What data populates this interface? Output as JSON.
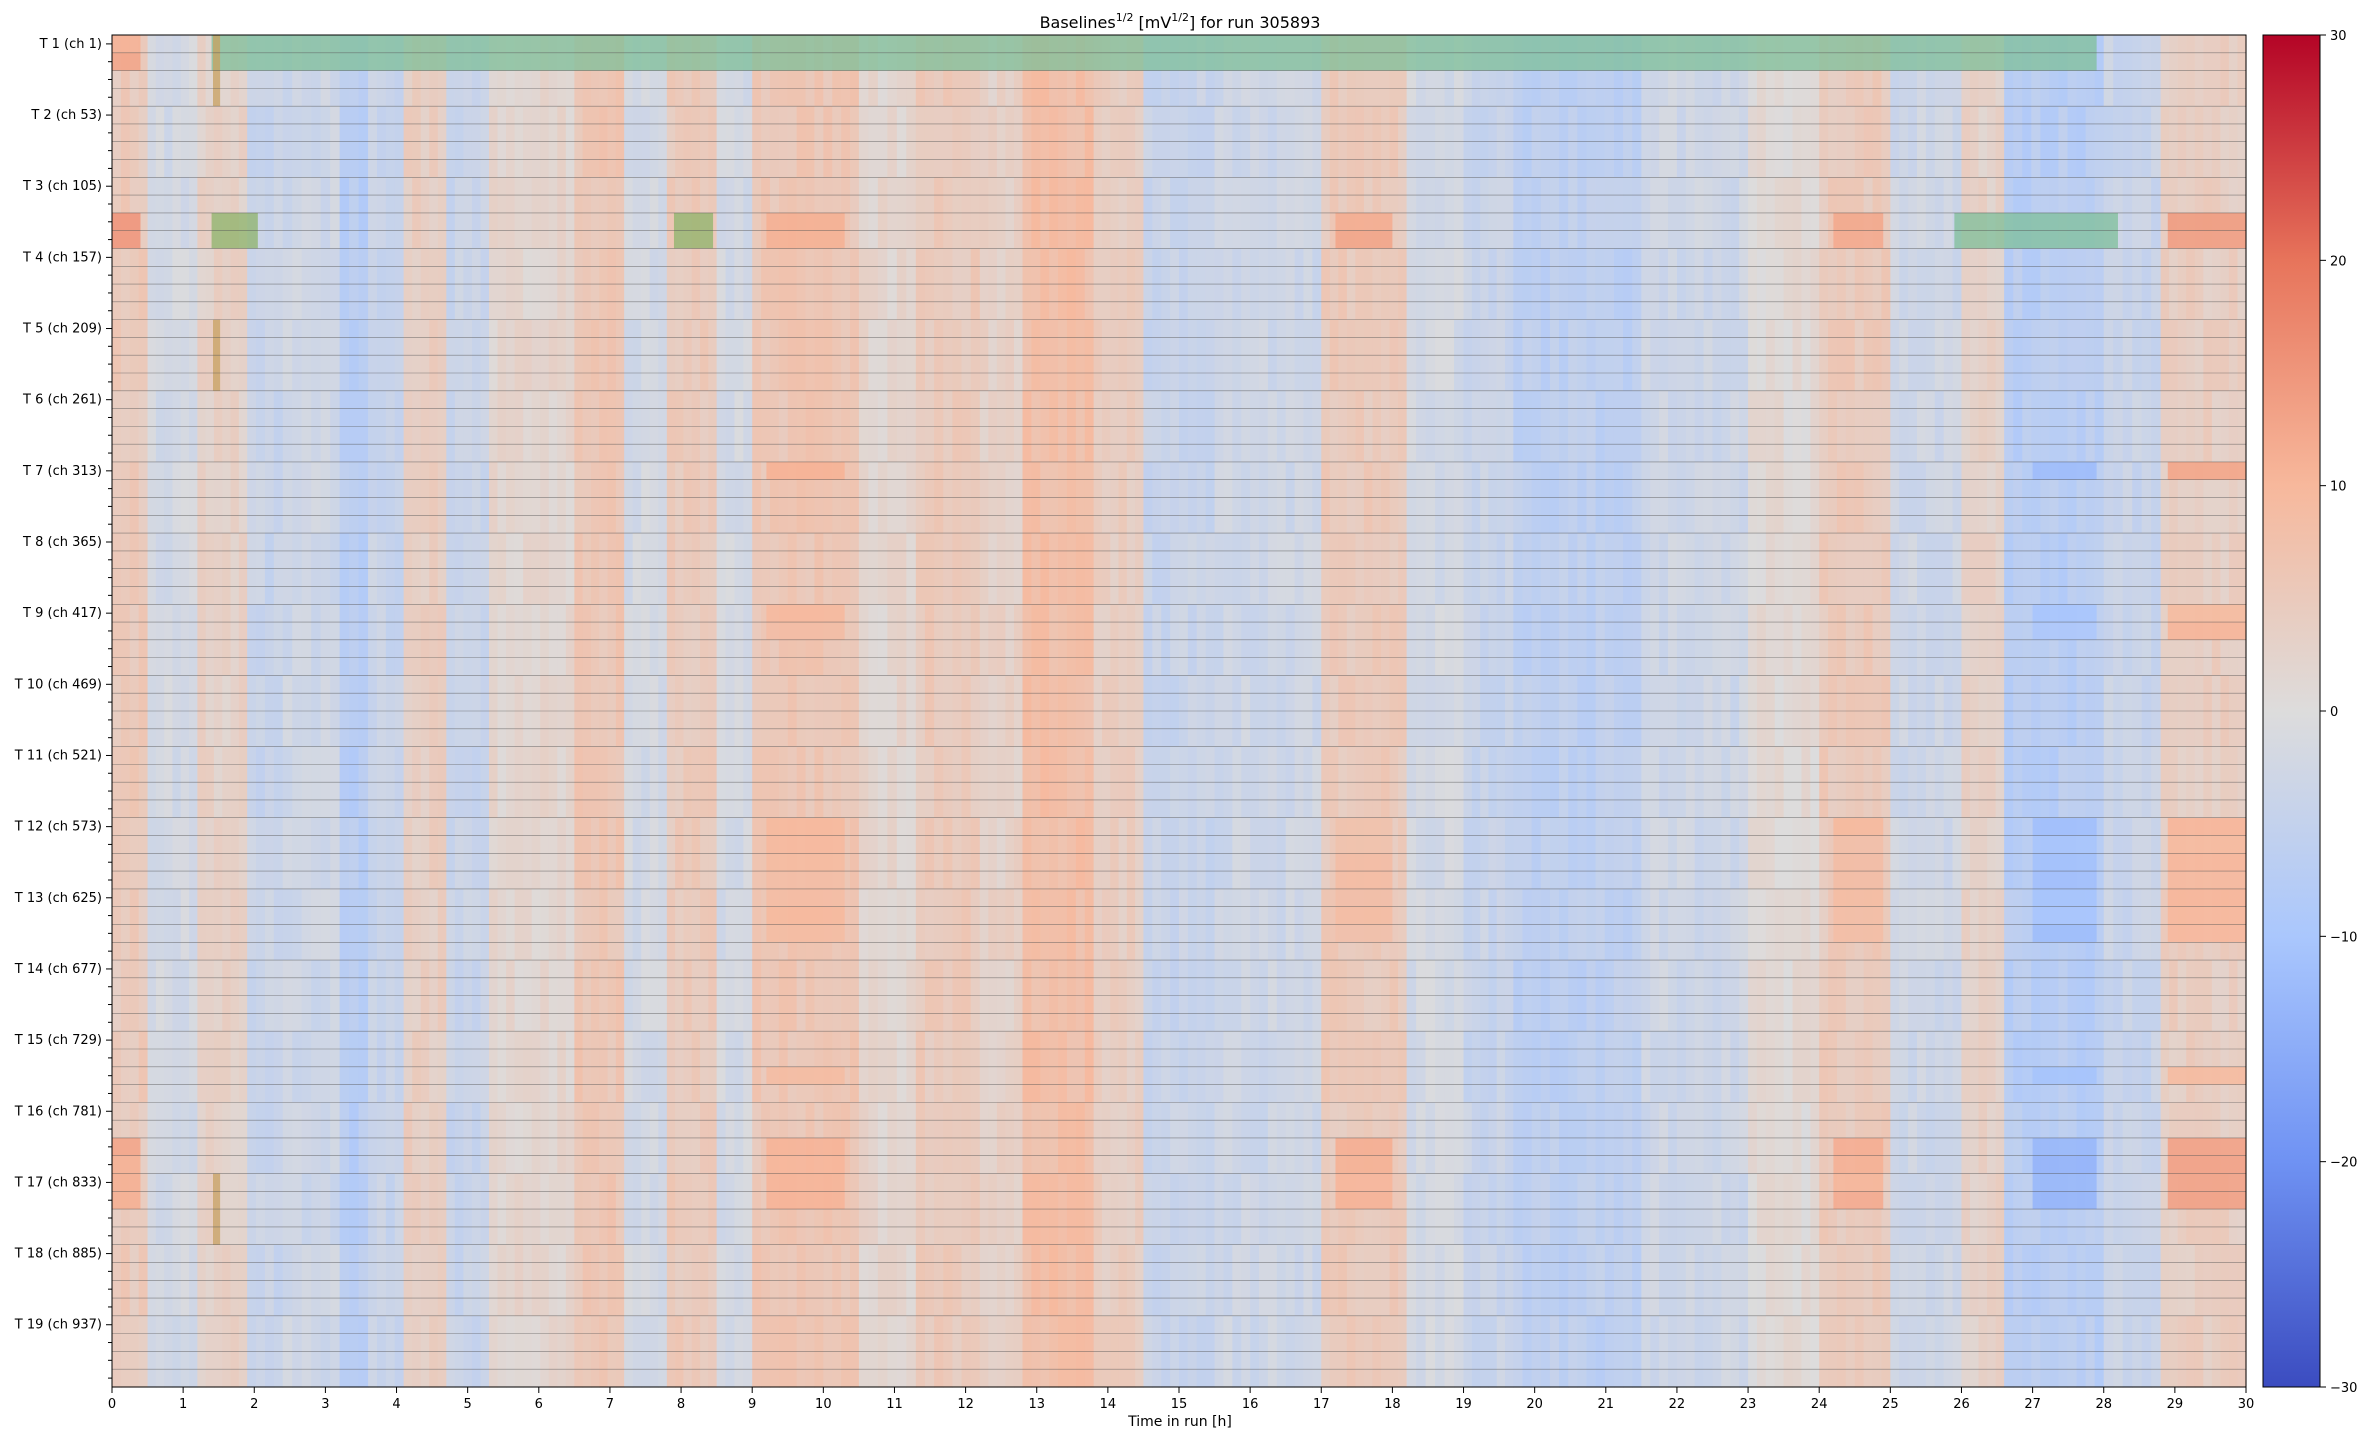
{
  "chart_data": {
    "type": "heatmap",
    "title_main": "Baselines",
    "title_exponent": "1/2",
    "title_unit_prefix": " [mV",
    "title_unit_exponent": "1/2",
    "title_suffix": "] for run 305893",
    "xlabel": "Time in run [h]",
    "ylabel": "",
    "xlim": [
      0,
      30
    ],
    "x_ticks": [
      0,
      1,
      2,
      3,
      4,
      5,
      6,
      7,
      8,
      9,
      10,
      11,
      12,
      13,
      14,
      15,
      16,
      17,
      18,
      19,
      20,
      21,
      22,
      23,
      24,
      25,
      26,
      27,
      28,
      29,
      30
    ],
    "y_tick_labels": [
      "T 1 (ch 1)",
      "T 2 (ch 53)",
      "T 3 (ch 105)",
      "T 4 (ch 157)",
      "T 5 (ch 209)",
      "T 6 (ch 261)",
      "T 7 (ch 313)",
      "T 8 (ch 365)",
      "T 9 (ch 417)",
      "T 10 (ch 469)",
      "T 11 (ch 521)",
      "T 12 (ch 573)",
      "T 13 (ch 625)",
      "T 14 (ch 677)",
      "T 15 (ch 729)",
      "T 16 (ch 781)",
      "T 17 (ch 833)",
      "T 18 (ch 885)",
      "T 19 (ch 937)"
    ],
    "row_count": 76,
    "colorbar": {
      "colormap": "coolwarm",
      "vmin": -30,
      "vmax": 30,
      "ticks": [
        30,
        20,
        10,
        0,
        -10,
        -20,
        -30
      ],
      "colors": [
        "#3b4cc0",
        "#6f92f3",
        "#aac7fd",
        "#dddcdc",
        "#f7b89c",
        "#e7745b",
        "#b40426"
      ]
    },
    "time_column_pattern": [
      {
        "x0": 0.0,
        "x1": 0.5,
        "v": 5
      },
      {
        "x0": 0.5,
        "x1": 1.2,
        "v": -2
      },
      {
        "x0": 1.2,
        "x1": 1.9,
        "v": 3
      },
      {
        "x0": 1.9,
        "x1": 2.4,
        "v": -4
      },
      {
        "x0": 2.4,
        "x1": 3.2,
        "v": -3
      },
      {
        "x0": 3.2,
        "x1": 3.6,
        "v": -7
      },
      {
        "x0": 3.6,
        "x1": 4.1,
        "v": -4
      },
      {
        "x0": 4.1,
        "x1": 4.7,
        "v": 4
      },
      {
        "x0": 4.7,
        "x1": 5.3,
        "v": -4
      },
      {
        "x0": 5.3,
        "x1": 6.5,
        "v": 2
      },
      {
        "x0": 6.5,
        "x1": 7.2,
        "v": 6
      },
      {
        "x0": 7.2,
        "x1": 7.8,
        "v": -2
      },
      {
        "x0": 7.8,
        "x1": 8.5,
        "v": 5
      },
      {
        "x0": 8.5,
        "x1": 9.0,
        "v": -2
      },
      {
        "x0": 9.0,
        "x1": 10.5,
        "v": 6
      },
      {
        "x0": 10.5,
        "x1": 11.3,
        "v": 2
      },
      {
        "x0": 11.3,
        "x1": 12.2,
        "v": 5
      },
      {
        "x0": 12.2,
        "x1": 12.8,
        "v": 3
      },
      {
        "x0": 12.8,
        "x1": 13.8,
        "v": 8
      },
      {
        "x0": 13.8,
        "x1": 14.5,
        "v": 4
      },
      {
        "x0": 14.5,
        "x1": 15.5,
        "v": -4
      },
      {
        "x0": 15.5,
        "x1": 17.0,
        "v": -3
      },
      {
        "x0": 17.0,
        "x1": 18.2,
        "v": 5
      },
      {
        "x0": 18.2,
        "x1": 19.0,
        "v": -2
      },
      {
        "x0": 19.0,
        "x1": 19.7,
        "v": -4
      },
      {
        "x0": 19.7,
        "x1": 21.5,
        "v": -6
      },
      {
        "x0": 21.5,
        "x1": 23.0,
        "v": -3
      },
      {
        "x0": 23.0,
        "x1": 24.0,
        "v": 1
      },
      {
        "x0": 24.0,
        "x1": 25.0,
        "v": 5
      },
      {
        "x0": 25.0,
        "x1": 26.0,
        "v": -3
      },
      {
        "x0": 26.0,
        "x1": 26.6,
        "v": 3
      },
      {
        "x0": 26.6,
        "x1": 28.0,
        "v": -7
      },
      {
        "x0": 28.0,
        "x1": 28.8,
        "v": -4
      },
      {
        "x0": 28.8,
        "x1": 30.0,
        "v": 4
      }
    ],
    "hot_row_bands": [
      {
        "r0": 0,
        "r1": 2,
        "x0": 0.0,
        "x1": 0.4,
        "v": 12
      },
      {
        "r0": 10,
        "r1": 12,
        "x0": 0.0,
        "x1": 0.4,
        "v": 14
      },
      {
        "r0": 10,
        "r1": 12,
        "x0": 9.2,
        "x1": 10.3,
        "v": 12
      },
      {
        "r0": 10,
        "r1": 12,
        "x0": 17.2,
        "x1": 18.0,
        "v": 12
      },
      {
        "r0": 10,
        "r1": 12,
        "x0": 24.2,
        "x1": 24.9,
        "v": 12
      },
      {
        "r0": 10,
        "r1": 12,
        "x0": 28.9,
        "x1": 30.0,
        "v": 14
      },
      {
        "r0": 24,
        "r1": 25,
        "x0": 9.2,
        "x1": 10.3,
        "v": 10
      },
      {
        "r0": 24,
        "r1": 25,
        "x0": 28.9,
        "x1": 30.0,
        "v": 12
      },
      {
        "r0": 24,
        "r1": 25,
        "x0": 27.0,
        "x1": 27.9,
        "v": -12
      },
      {
        "r0": 32,
        "r1": 34,
        "x0": 9.2,
        "x1": 10.3,
        "v": 9
      },
      {
        "r0": 32,
        "r1": 34,
        "x0": 28.9,
        "x1": 30.0,
        "v": 10
      },
      {
        "r0": 32,
        "r1": 34,
        "x0": 27.0,
        "x1": 27.9,
        "v": -10
      },
      {
        "r0": 44,
        "r1": 51,
        "x0": 9.2,
        "x1": 10.3,
        "v": 9
      },
      {
        "r0": 44,
        "r1": 51,
        "x0": 17.2,
        "x1": 18.0,
        "v": 8
      },
      {
        "r0": 44,
        "r1": 51,
        "x0": 24.2,
        "x1": 24.9,
        "v": 9
      },
      {
        "r0": 44,
        "r1": 51,
        "x0": 28.9,
        "x1": 30.0,
        "v": 10
      },
      {
        "r0": 44,
        "r1": 51,
        "x0": 27.0,
        "x1": 27.9,
        "v": -11
      },
      {
        "r0": 58,
        "r1": 59,
        "x0": 9.2,
        "x1": 10.3,
        "v": 8
      },
      {
        "r0": 58,
        "r1": 59,
        "x0": 28.9,
        "x1": 30.0,
        "v": 10
      },
      {
        "r0": 58,
        "r1": 59,
        "x0": 27.0,
        "x1": 27.9,
        "v": -10
      },
      {
        "r0": 62,
        "r1": 66,
        "x0": 0.0,
        "x1": 0.4,
        "v": 12
      },
      {
        "r0": 62,
        "r1": 66,
        "x0": 9.2,
        "x1": 10.3,
        "v": 11
      },
      {
        "r0": 62,
        "r1": 66,
        "x0": 17.2,
        "x1": 18.0,
        "v": 11
      },
      {
        "r0": 62,
        "r1": 66,
        "x0": 24.2,
        "x1": 24.9,
        "v": 11
      },
      {
        "r0": 62,
        "r1": 66,
        "x0": 28.9,
        "x1": 30.0,
        "v": 13
      },
      {
        "r0": 62,
        "r1": 66,
        "x0": 27.0,
        "x1": 27.9,
        "v": -13
      }
    ],
    "dead_channel_overlays": [
      {
        "r0": 0,
        "r1": 1,
        "x0": 1.4,
        "x1": 27.9,
        "color": "#7fbf9a"
      },
      {
        "r0": 1,
        "r1": 2,
        "x0": 1.4,
        "x1": 27.9,
        "color": "#7fbf9a"
      },
      {
        "r0": 10,
        "r1": 12,
        "x0": 1.4,
        "x1": 2.05,
        "color": "#8db36a"
      },
      {
        "r0": 10,
        "r1": 12,
        "x0": 7.9,
        "x1": 8.45,
        "color": "#8db36a"
      },
      {
        "r0": 10,
        "r1": 12,
        "x0": 25.9,
        "x1": 28.2,
        "color": "#7fbf9a"
      },
      {
        "r0": 0,
        "r1": 4,
        "x0": 1.42,
        "x1": 1.52,
        "color": "#c8a060"
      },
      {
        "r0": 16,
        "r1": 20,
        "x0": 1.42,
        "x1": 1.52,
        "color": "#c8a060"
      },
      {
        "r0": 64,
        "r1": 68,
        "x0": 1.42,
        "x1": 1.52,
        "color": "#c8a060"
      }
    ]
  }
}
